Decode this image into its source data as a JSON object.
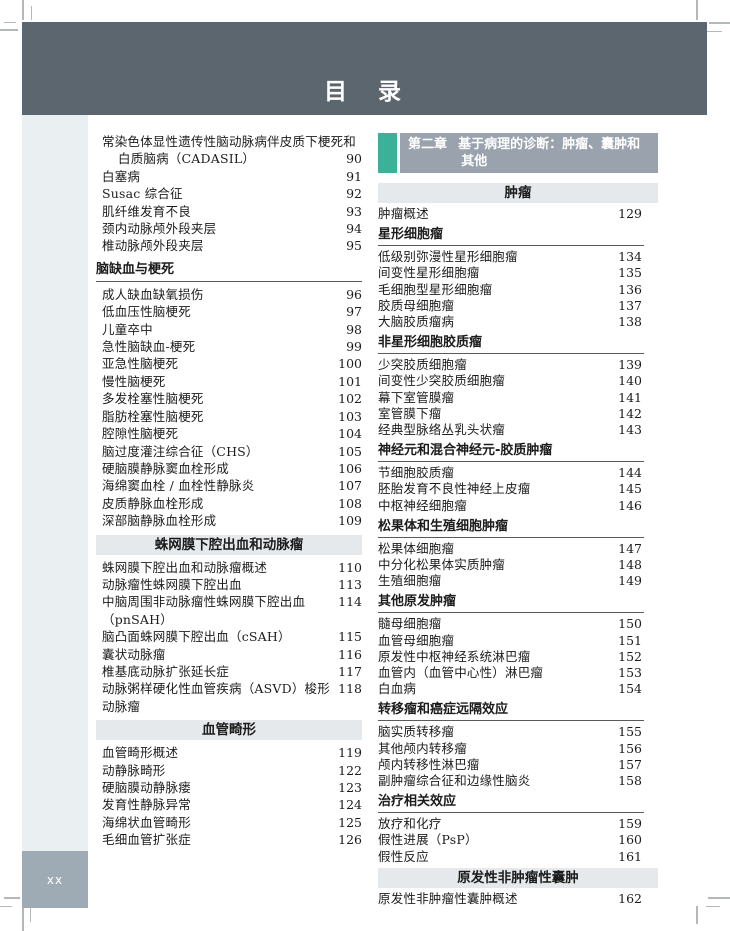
{
  "page": {
    "title": "目　录",
    "folio": "xx"
  },
  "colors": {
    "title_band": "#5c666f",
    "chapter_band": "#9aa3ad",
    "chapter_accent_teal": "#3bb298",
    "section_band": "#e6e9eb",
    "sidebar_strip": "#eaeff2",
    "folio_box": "#9fabb4",
    "text": "#1c1c1c"
  },
  "left": {
    "blocks": [
      {
        "type": "entry2",
        "line1": "常染色体显性遗传性脑动脉病伴皮质下梗死和",
        "line2": "白质脑病（CADASIL）",
        "page": "90"
      },
      {
        "type": "entry",
        "text": "白塞病",
        "page": "91"
      },
      {
        "type": "entry",
        "text": "Susac 综合征",
        "page": "92"
      },
      {
        "type": "entry",
        "text": "肌纤维发育不良",
        "page": "93"
      },
      {
        "type": "entry",
        "text": "颈内动脉颅外段夹层",
        "page": "94"
      },
      {
        "type": "entry",
        "text": "椎动脉颅外段夹层",
        "page": "95"
      },
      {
        "type": "subheader",
        "text": "脑缺血与梗死"
      },
      {
        "type": "entry",
        "text": "成人缺血缺氧损伤",
        "page": "96"
      },
      {
        "type": "entry",
        "text": "低血压性脑梗死",
        "page": "97"
      },
      {
        "type": "entry",
        "text": "儿童卒中",
        "page": "98"
      },
      {
        "type": "entry",
        "text": "急性脑缺血-梗死",
        "page": "99"
      },
      {
        "type": "entry",
        "text": "亚急性脑梗死",
        "page": "100"
      },
      {
        "type": "entry",
        "text": "慢性脑梗死",
        "page": "101"
      },
      {
        "type": "entry",
        "text": "多发栓塞性脑梗死",
        "page": "102"
      },
      {
        "type": "entry",
        "text": "脂肪栓塞性脑梗死",
        "page": "103"
      },
      {
        "type": "entry",
        "text": "腔隙性脑梗死",
        "page": "104"
      },
      {
        "type": "entry",
        "text": "脑过度灌注综合征（CHS）",
        "page": "105"
      },
      {
        "type": "entry",
        "text": "硬脑膜静脉窦血栓形成",
        "page": "106"
      },
      {
        "type": "entry",
        "text": "海绵窦血栓 / 血栓性静脉炎",
        "page": "107"
      },
      {
        "type": "entry",
        "text": "皮质静脉血栓形成",
        "page": "108"
      },
      {
        "type": "entry",
        "text": "深部脑静脉血栓形成",
        "page": "109"
      },
      {
        "type": "band",
        "text": "蛛网膜下腔出血和动脉瘤"
      },
      {
        "type": "entry",
        "text": "蛛网膜下腔出血和动脉瘤概述",
        "page": "110"
      },
      {
        "type": "entry",
        "text": "动脉瘤性蛛网膜下腔出血",
        "page": "113"
      },
      {
        "type": "entry",
        "text": "中脑周围非动脉瘤性蛛网膜下腔出血（pnSAH）",
        "page": "114"
      },
      {
        "type": "entry",
        "text": "脑凸面蛛网膜下腔出血（cSAH）",
        "page": "115"
      },
      {
        "type": "entry",
        "text": "囊状动脉瘤",
        "page": "116"
      },
      {
        "type": "entry",
        "text": "椎基底动脉扩张延长症",
        "page": "117"
      },
      {
        "type": "entry",
        "text": "动脉粥样硬化性血管疾病（ASVD）梭形动脉瘤",
        "page": "118"
      },
      {
        "type": "band",
        "text": "血管畸形"
      },
      {
        "type": "entry",
        "text": "血管畸形概述",
        "page": "119"
      },
      {
        "type": "entry",
        "text": "动静脉畸形",
        "page": "122"
      },
      {
        "type": "entry",
        "text": "硬脑膜动静脉瘘",
        "page": "123"
      },
      {
        "type": "entry",
        "text": "发育性静脉异常",
        "page": "124"
      },
      {
        "type": "entry",
        "text": "海绵状血管畸形",
        "page": "125"
      },
      {
        "type": "entry",
        "text": "毛细血管扩张症",
        "page": "126"
      }
    ]
  },
  "right": {
    "chapter": {
      "number": "第二章",
      "title": "基于病理的诊断：肿瘤、囊肿和其他"
    },
    "blocks": [
      {
        "type": "band",
        "text": "肿瘤"
      },
      {
        "type": "entry",
        "text": "肿瘤概述",
        "page": "129"
      },
      {
        "type": "subheader",
        "text": "星形细胞瘤"
      },
      {
        "type": "entry",
        "text": "低级别弥漫性星形细胞瘤",
        "page": "134"
      },
      {
        "type": "entry",
        "text": "间变性星形细胞瘤",
        "page": "135"
      },
      {
        "type": "entry",
        "text": "毛细胞型星形细胞瘤",
        "page": "136"
      },
      {
        "type": "entry",
        "text": "胶质母细胞瘤",
        "page": "137"
      },
      {
        "type": "entry",
        "text": "大脑胶质瘤病",
        "page": "138"
      },
      {
        "type": "subheader",
        "text": "非星形细胞胶质瘤"
      },
      {
        "type": "entry",
        "text": "少突胶质细胞瘤",
        "page": "139"
      },
      {
        "type": "entry",
        "text": "间变性少突胶质细胞瘤",
        "page": "140"
      },
      {
        "type": "entry",
        "text": "幕下室管膜瘤",
        "page": "141"
      },
      {
        "type": "entry",
        "text": "室管膜下瘤",
        "page": "142"
      },
      {
        "type": "entry",
        "text": "经典型脉络丛乳头状瘤",
        "page": "143"
      },
      {
        "type": "subheader",
        "text": "神经元和混合神经元-胶质肿瘤"
      },
      {
        "type": "entry",
        "text": "节细胞胶质瘤",
        "page": "144"
      },
      {
        "type": "entry",
        "text": "胚胎发育不良性神经上皮瘤",
        "page": "145"
      },
      {
        "type": "entry",
        "text": "中枢神经细胞瘤",
        "page": "146"
      },
      {
        "type": "subheader",
        "text": "松果体和生殖细胞肿瘤"
      },
      {
        "type": "entry",
        "text": "松果体细胞瘤",
        "page": "147"
      },
      {
        "type": "entry",
        "text": "中分化松果体实质肿瘤",
        "page": "148"
      },
      {
        "type": "entry",
        "text": "生殖细胞瘤",
        "page": "149"
      },
      {
        "type": "subheader",
        "text": "其他原发肿瘤"
      },
      {
        "type": "entry",
        "text": "髓母细胞瘤",
        "page": "150"
      },
      {
        "type": "entry",
        "text": "血管母细胞瘤",
        "page": "151"
      },
      {
        "type": "entry",
        "text": "原发性中枢神经系统淋巴瘤",
        "page": "152"
      },
      {
        "type": "entry",
        "text": "血管内（血管中心性）淋巴瘤",
        "page": "153"
      },
      {
        "type": "entry",
        "text": "白血病",
        "page": "154"
      },
      {
        "type": "subheader",
        "text": "转移瘤和癌症远隔效应"
      },
      {
        "type": "entry",
        "text": "脑实质转移瘤",
        "page": "155"
      },
      {
        "type": "entry",
        "text": "其他颅内转移瘤",
        "page": "156"
      },
      {
        "type": "entry",
        "text": "颅内转移性淋巴瘤",
        "page": "157"
      },
      {
        "type": "entry",
        "text": "副肿瘤综合征和边缘性脑炎",
        "page": "158"
      },
      {
        "type": "subheader",
        "text": "治疗相关效应"
      },
      {
        "type": "entry",
        "text": "放疗和化疗",
        "page": "159"
      },
      {
        "type": "entry",
        "text": "假性进展（PsP）",
        "page": "160"
      },
      {
        "type": "entry",
        "text": "假性反应",
        "page": "161"
      },
      {
        "type": "band",
        "text": "原发性非肿瘤性囊肿"
      },
      {
        "type": "entry",
        "text": "原发性非肿瘤性囊肿概述",
        "page": "162"
      }
    ]
  }
}
